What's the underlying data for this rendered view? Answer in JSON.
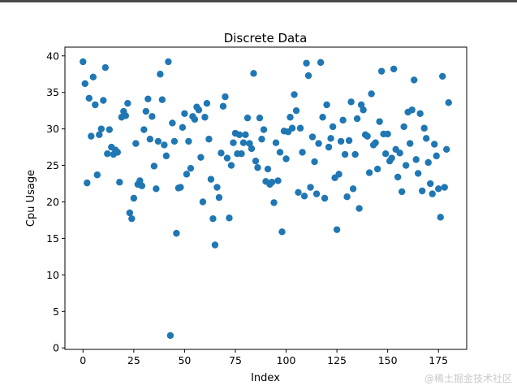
{
  "watermark": "@稀土掘金技术社区",
  "chart_data": {
    "type": "scatter",
    "title": "Discrete Data",
    "xlabel": "Index",
    "ylabel": "Cpu Usage",
    "xlim": [
      -8.9,
      188.9
    ],
    "ylim": [
      -0.2,
      41.2
    ],
    "xticks": [
      0,
      25,
      50,
      75,
      100,
      125,
      150,
      175
    ],
    "yticks": [
      0,
      5,
      10,
      15,
      20,
      25,
      30,
      35,
      40
    ],
    "grid": false,
    "legend": "none",
    "marker_color": "#1f77b4",
    "points": [
      [
        0,
        39.2
      ],
      [
        1,
        36.2
      ],
      [
        2,
        22.6
      ],
      [
        3,
        34.2
      ],
      [
        4,
        29.0
      ],
      [
        5,
        37.1
      ],
      [
        6,
        33.3
      ],
      [
        7,
        23.7
      ],
      [
        8,
        29.2
      ],
      [
        9,
        30.0
      ],
      [
        10,
        33.9
      ],
      [
        11,
        38.4
      ],
      [
        12,
        26.6
      ],
      [
        13,
        29.9
      ],
      [
        14,
        27.5
      ],
      [
        15,
        26.5
      ],
      [
        16,
        27.1
      ],
      [
        17,
        26.8
      ],
      [
        18,
        22.7
      ],
      [
        19,
        31.6
      ],
      [
        20,
        32.4
      ],
      [
        21,
        31.8
      ],
      [
        22,
        33.5
      ],
      [
        23,
        18.5
      ],
      [
        24,
        17.7
      ],
      [
        25,
        20.5
      ],
      [
        26,
        28.0
      ],
      [
        27,
        22.4
      ],
      [
        28,
        22.9
      ],
      [
        29,
        22.2
      ],
      [
        30,
        29.9
      ],
      [
        31,
        32.4
      ],
      [
        32,
        34.1
      ],
      [
        33,
        28.6
      ],
      [
        34,
        31.7
      ],
      [
        35,
        24.9
      ],
      [
        36,
        21.8
      ],
      [
        37,
        28.3
      ],
      [
        38,
        37.5
      ],
      [
        39,
        34.0
      ],
      [
        40,
        27.8
      ],
      [
        41,
        26.3
      ],
      [
        42,
        39.2
      ],
      [
        43,
        1.7
      ],
      [
        44,
        30.8
      ],
      [
        45,
        28.3
      ],
      [
        46,
        15.7
      ],
      [
        47,
        21.9
      ],
      [
        48,
        22.0
      ],
      [
        49,
        30.2
      ],
      [
        50,
        32.1
      ],
      [
        51,
        23.8
      ],
      [
        52,
        28.3
      ],
      [
        53,
        24.6
      ],
      [
        54,
        31.7
      ],
      [
        55,
        31.3
      ],
      [
        56,
        33.0
      ],
      [
        57,
        32.6
      ],
      [
        58,
        26.1
      ],
      [
        59,
        20.0
      ],
      [
        60,
        31.6
      ],
      [
        61,
        33.5
      ],
      [
        62,
        28.6
      ],
      [
        63,
        23.1
      ],
      [
        64,
        17.7
      ],
      [
        65,
        14.1
      ],
      [
        66,
        22.0
      ],
      [
        67,
        20.6
      ],
      [
        68,
        26.7
      ],
      [
        69,
        33.1
      ],
      [
        70,
        34.4
      ],
      [
        71,
        26.0
      ],
      [
        72,
        17.8
      ],
      [
        73,
        25.0
      ],
      [
        74,
        28.1
      ],
      [
        75,
        29.4
      ],
      [
        76,
        26.6
      ],
      [
        77,
        29.2
      ],
      [
        78,
        26.6
      ],
      [
        79,
        28.1
      ],
      [
        80,
        29.2
      ],
      [
        81,
        31.5
      ],
      [
        82,
        28.0
      ],
      [
        83,
        27.3
      ],
      [
        84,
        37.6
      ],
      [
        85,
        25.6
      ],
      [
        86,
        24.7
      ],
      [
        87,
        31.5
      ],
      [
        88,
        28.6
      ],
      [
        89,
        29.9
      ],
      [
        90,
        22.8
      ],
      [
        91,
        24.5
      ],
      [
        92,
        22.4
      ],
      [
        93,
        22.7
      ],
      [
        94,
        19.9
      ],
      [
        95,
        28.1
      ],
      [
        96,
        22.9
      ],
      [
        97,
        26.8
      ],
      [
        98,
        15.9
      ],
      [
        99,
        29.7
      ],
      [
        100,
        25.9
      ],
      [
        101,
        29.6
      ],
      [
        102,
        31.6
      ],
      [
        103,
        30.1
      ],
      [
        104,
        34.7
      ],
      [
        105,
        32.5
      ],
      [
        106,
        21.3
      ],
      [
        107,
        30.1
      ],
      [
        108,
        26.8
      ],
      [
        109,
        20.8
      ],
      [
        110,
        39.0
      ],
      [
        111,
        37.3
      ],
      [
        112,
        22.0
      ],
      [
        113,
        28.9
      ],
      [
        114,
        25.5
      ],
      [
        115,
        21.1
      ],
      [
        116,
        28.0
      ],
      [
        117,
        39.1
      ],
      [
        118,
        31.6
      ],
      [
        119,
        20.5
      ],
      [
        120,
        33.3
      ],
      [
        121,
        27.5
      ],
      [
        122,
        28.7
      ],
      [
        123,
        30.3
      ],
      [
        124,
        23.3
      ],
      [
        125,
        16.2
      ],
      [
        126,
        23.8
      ],
      [
        127,
        28.3
      ],
      [
        128,
        31.2
      ],
      [
        129,
        26.5
      ],
      [
        130,
        20.7
      ],
      [
        131,
        28.4
      ],
      [
        132,
        33.7
      ],
      [
        133,
        21.8
      ],
      [
        134,
        26.5
      ],
      [
        135,
        31.4
      ],
      [
        136,
        19.1
      ],
      [
        137,
        33.3
      ],
      [
        138,
        32.6
      ],
      [
        139,
        29.2
      ],
      [
        140,
        29.0
      ],
      [
        141,
        24.0
      ],
      [
        142,
        34.8
      ],
      [
        143,
        27.8
      ],
      [
        144,
        28.1
      ],
      [
        145,
        24.5
      ],
      [
        146,
        31.0
      ],
      [
        147,
        37.9
      ],
      [
        148,
        29.3
      ],
      [
        149,
        26.6
      ],
      [
        150,
        29.3
      ],
      [
        151,
        25.6
      ],
      [
        152,
        26.0
      ],
      [
        153,
        38.2
      ],
      [
        154,
        27.2
      ],
      [
        155,
        23.4
      ],
      [
        156,
        26.7
      ],
      [
        157,
        21.4
      ],
      [
        158,
        30.3
      ],
      [
        159,
        25.0
      ],
      [
        160,
        32.3
      ],
      [
        161,
        28.0
      ],
      [
        162,
        32.6
      ],
      [
        163,
        36.7
      ],
      [
        164,
        25.8
      ],
      [
        165,
        23.9
      ],
      [
        166,
        32.1
      ],
      [
        167,
        21.5
      ],
      [
        168,
        30.1
      ],
      [
        169,
        28.7
      ],
      [
        170,
        25.4
      ],
      [
        171,
        22.5
      ],
      [
        172,
        21.1
      ],
      [
        173,
        27.9
      ],
      [
        174,
        26.3
      ],
      [
        175,
        21.8
      ],
      [
        176,
        17.9
      ],
      [
        177,
        37.2
      ],
      [
        178,
        22.0
      ],
      [
        179,
        27.2
      ],
      [
        180,
        33.6
      ]
    ]
  }
}
